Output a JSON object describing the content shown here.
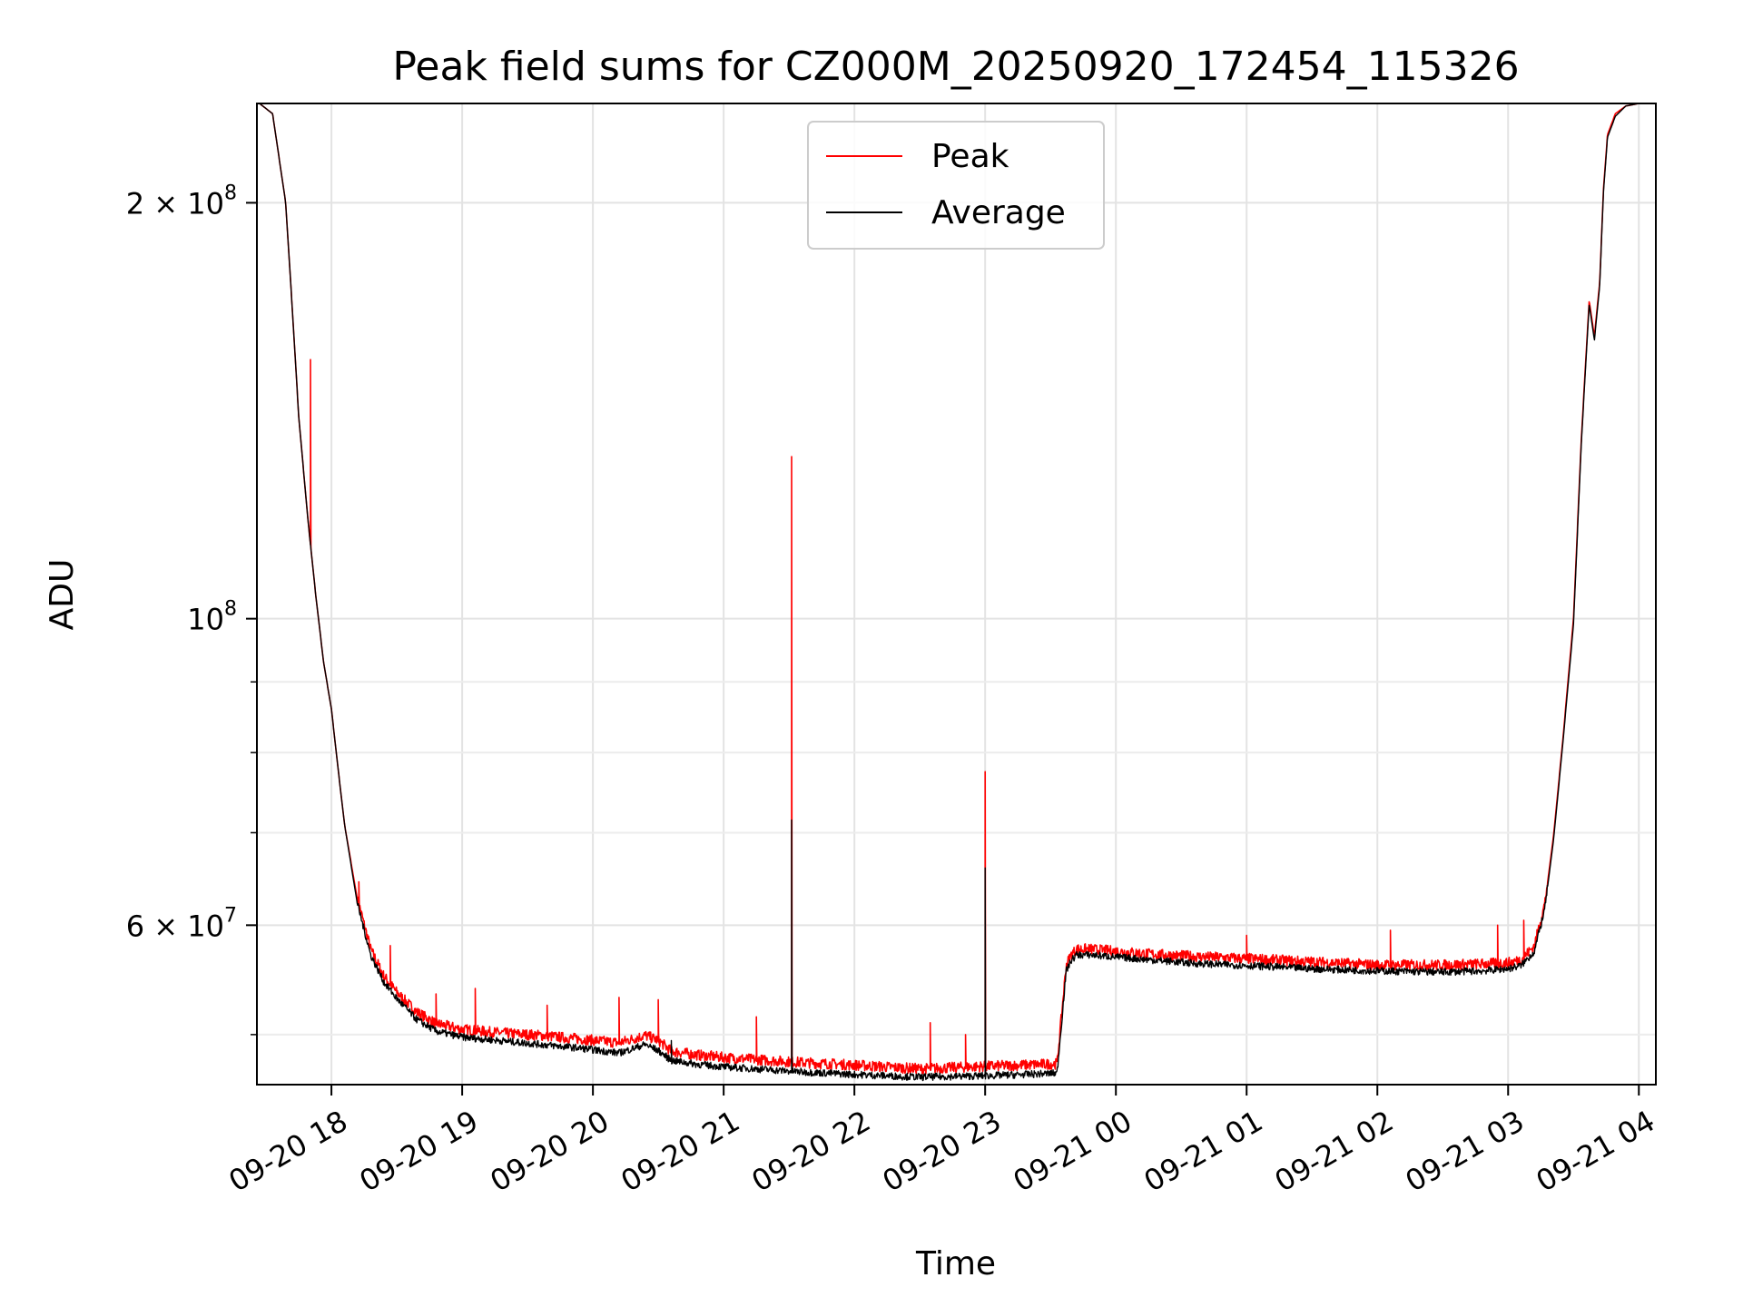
{
  "chart_data": {
    "type": "line",
    "title": "Peak field sums for CZ000M_20250920_172454_115326",
    "xlabel": "Time",
    "ylabel": "ADU",
    "yscale": "log",
    "grid": true,
    "legend_position": "upper center",
    "xlim_hours": [
      -0.57,
      10.13
    ],
    "ylim": [
      46000000,
      236000000
    ],
    "x_ticks": [
      {
        "value": 0,
        "label": "09-20 18"
      },
      {
        "value": 1,
        "label": "09-20 19"
      },
      {
        "value": 2,
        "label": "09-20 20"
      },
      {
        "value": 3,
        "label": "09-20 21"
      },
      {
        "value": 4,
        "label": "09-20 22"
      },
      {
        "value": 5,
        "label": "09-20 23"
      },
      {
        "value": 6,
        "label": "09-21 00"
      },
      {
        "value": 7,
        "label": "09-21 01"
      },
      {
        "value": 8,
        "label": "09-21 02"
      },
      {
        "value": 9,
        "label": "09-21 03"
      },
      {
        "value": 10,
        "label": "09-21 04"
      }
    ],
    "y_major_ticks": [
      {
        "value": 200000000,
        "label_base": "2 × 10",
        "label_exp": "8"
      },
      {
        "value": 100000000,
        "label_base": "10",
        "label_exp": "8"
      },
      {
        "value": 60000000,
        "label_base": "6 × 10",
        "label_exp": "7"
      }
    ],
    "y_minor_ticks": [
      50000000,
      70000000,
      80000000,
      90000000
    ],
    "series": [
      {
        "name": "Peak",
        "color": "#ff0000",
        "x_hours": [
          -0.55,
          -0.45,
          -0.35,
          -0.3,
          -0.25,
          -0.18,
          -0.12,
          -0.06,
          0,
          0.05,
          0.1,
          0.2,
          0.3,
          0.4,
          0.5,
          0.65,
          0.8,
          1.0,
          1.3,
          1.6,
          1.9,
          2.2,
          2.4,
          2.5,
          2.6,
          2.8,
          3.0,
          3.3,
          3.6,
          4.0,
          4.5,
          5.0,
          5.3,
          5.55,
          5.62,
          5.66,
          5.7,
          5.8,
          6.0,
          6.3,
          6.6,
          7.0,
          7.5,
          8.0,
          8.5,
          8.8,
          9.0,
          9.1,
          9.2,
          9.28,
          9.35,
          9.42,
          9.5,
          9.56,
          9.62,
          9.66,
          9.7,
          9.73,
          9.76,
          9.82,
          9.9,
          10.0,
          10.12
        ],
        "y": [
          236000000,
          232000000,
          200000000,
          168000000,
          140000000,
          118000000,
          104000000,
          93000000,
          86000000,
          78000000,
          71000000,
          62500000,
          57500000,
          55000000,
          53500000,
          51800000,
          50800000,
          50300000,
          50000000,
          49800000,
          49500000,
          49200000,
          49800000,
          49400000,
          48500000,
          48200000,
          48000000,
          47800000,
          47600000,
          47400000,
          47100000,
          47300000,
          47400000,
          47500000,
          56000000,
          57000000,
          57500000,
          57500000,
          57300000,
          57000000,
          56800000,
          56600000,
          56300000,
          56000000,
          56000000,
          56100000,
          56200000,
          56500000,
          57800000,
          62000000,
          70000000,
          82000000,
          100000000,
          135000000,
          170000000,
          160000000,
          175000000,
          205000000,
          224000000,
          232000000,
          235000000,
          236000000,
          236000000
        ],
        "spikes": [
          {
            "x": -0.16,
            "y": 154000000
          },
          {
            "x": 0.21,
            "y": 64500000
          },
          {
            "x": 0.45,
            "y": 58000000
          },
          {
            "x": 0.8,
            "y": 53500000
          },
          {
            "x": 1.1,
            "y": 54000000
          },
          {
            "x": 1.65,
            "y": 52500000
          },
          {
            "x": 2.2,
            "y": 53200000
          },
          {
            "x": 2.5,
            "y": 53000000
          },
          {
            "x": 3.25,
            "y": 51500000
          },
          {
            "x": 3.52,
            "y": 131000000
          },
          {
            "x": 4.58,
            "y": 51000000
          },
          {
            "x": 4.85,
            "y": 50000000
          },
          {
            "x": 5.0,
            "y": 77500000
          },
          {
            "x": 7.0,
            "y": 59000000
          },
          {
            "x": 8.1,
            "y": 59500000
          },
          {
            "x": 8.92,
            "y": 60000000
          },
          {
            "x": 9.12,
            "y": 60500000
          }
        ]
      },
      {
        "name": "Average",
        "color": "#000000",
        "x_hours": [
          -0.55,
          -0.45,
          -0.35,
          -0.3,
          -0.25,
          -0.18,
          -0.12,
          -0.06,
          0,
          0.05,
          0.1,
          0.2,
          0.3,
          0.4,
          0.5,
          0.65,
          0.8,
          1.0,
          1.3,
          1.6,
          1.9,
          2.2,
          2.4,
          2.5,
          2.6,
          2.8,
          3.0,
          3.3,
          3.6,
          4.0,
          4.5,
          5.0,
          5.3,
          5.55,
          5.62,
          5.66,
          5.7,
          5.8,
          6.0,
          6.3,
          6.6,
          7.0,
          7.5,
          8.0,
          8.5,
          8.8,
          9.0,
          9.1,
          9.2,
          9.28,
          9.35,
          9.42,
          9.5,
          9.56,
          9.62,
          9.66,
          9.7,
          9.73,
          9.76,
          9.82,
          9.9,
          10.0,
          10.12
        ],
        "y": [
          236000000,
          232000000,
          200000000,
          168000000,
          140000000,
          118000000,
          104000000,
          93000000,
          86000000,
          78000000,
          71000000,
          62000000,
          57000000,
          54500000,
          53000000,
          51200000,
          50200000,
          49700000,
          49400000,
          49100000,
          48800000,
          48400000,
          49100000,
          48600000,
          47800000,
          47500000,
          47300000,
          47100000,
          46900000,
          46700000,
          46500000,
          46600000,
          46700000,
          46800000,
          55500000,
          56500000,
          57000000,
          57000000,
          56800000,
          56500000,
          56200000,
          56000000,
          55700000,
          55500000,
          55400000,
          55500000,
          55700000,
          56000000,
          57300000,
          61500000,
          69500000,
          81500000,
          99000000,
          134000000,
          169000000,
          159000000,
          174000000,
          204000000,
          223000000,
          231000000,
          235000000,
          236000000,
          236000000
        ],
        "spikes": [
          {
            "x": 3.52,
            "y": 71500000
          },
          {
            "x": 5.0,
            "y": 66000000
          },
          {
            "x": 2.6,
            "y": 49500000
          }
        ]
      }
    ]
  }
}
